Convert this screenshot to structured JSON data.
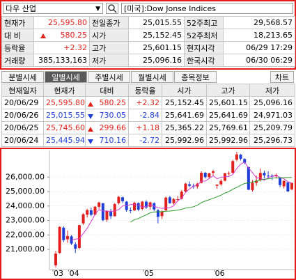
{
  "header": {
    "market": "다우 산업",
    "symbol": "[미국]:Dow Jonse Indices"
  },
  "quote": [
    [
      "현재가",
      "25,595.80",
      "전일종가",
      "25,015.55",
      "52주최고",
      "29,568.57"
    ],
    [
      "대 비",
      "580.25",
      "시가",
      "25,152.45",
      "52주최저",
      "18,213.65"
    ],
    [
      "등락율",
      "+2.32",
      "고가",
      "25,601.15",
      "현지시각",
      "06/29 17:29"
    ],
    [
      "거래량",
      "385,133,163",
      "저가",
      "25,096.16",
      "한국시각",
      "06/30 06:29"
    ]
  ],
  "tabs": [
    "분별시세",
    "일별시세",
    "주별시세",
    "월별시세",
    "종목정보"
  ],
  "chart_button": "차트",
  "daily": {
    "columns": [
      "현재일자",
      "현재가",
      "대비",
      "등락율",
      "시가",
      "고가",
      "저가"
    ],
    "rows": [
      [
        "20/06/29",
        "25,595.80",
        "580.25",
        "+2.32",
        "25,152.45",
        "25,601.15",
        "25,096.16"
      ],
      [
        "20/06/26",
        "25,015.55",
        "730.05",
        "-2.84",
        "25,641.69",
        "25,641.69",
        "24,971.03"
      ],
      [
        "20/06/25",
        "25,745.60",
        "299.66",
        "+1.18",
        "25,365.22",
        "25,769.61",
        "25,209.79"
      ],
      [
        "20/06/24",
        "25,445.94",
        "710.16",
        "-2.72",
        "25,992.96",
        "25,992.96",
        "25,296.73"
      ]
    ]
  },
  "chart": {
    "type": "candlestick",
    "up_color": "#e0211d",
    "down_color": "#1f3fd6",
    "ma5_color": "#d23cd2",
    "ma20_color": "#2a9a2a",
    "ylim": [
      19700,
      27700
    ],
    "yticks": [
      {
        "value": 21000,
        "label": "21,000.00"
      },
      {
        "value": 22000,
        "label": "22,000.00"
      },
      {
        "value": 23000,
        "label": "23,000.00"
      },
      {
        "value": 24000,
        "label": "24,000.00"
      },
      {
        "value": 25000,
        "label": "25,000.00"
      },
      {
        "value": 26000,
        "label": "26,000.00"
      }
    ],
    "categories": [
      "03",
      null,
      null,
      null,
      "04",
      null,
      null,
      null,
      null,
      null,
      null,
      null,
      null,
      null,
      null,
      null,
      null,
      null,
      null,
      null,
      null,
      null,
      null,
      "05",
      null,
      null,
      null,
      null,
      null,
      null,
      null,
      null,
      null,
      null,
      null,
      null,
      null,
      null,
      null,
      null,
      null,
      "06",
      null,
      null,
      null,
      null,
      null,
      null,
      null,
      null,
      null,
      null,
      null,
      null,
      null,
      null,
      null,
      null,
      null,
      null,
      null
    ],
    "open": [
      19900,
      20750,
      22500,
      21700,
      21900,
      21350,
      21100,
      22800,
      23400,
      23700,
      23400,
      23950,
      24200,
      23050,
      23600,
      23300,
      24200,
      24600,
      24300,
      23700,
      23700,
      24200,
      23800,
      24300,
      23950,
      24200,
      23700,
      23300,
      23700,
      24600,
      24200,
      24450,
      24500,
      25000,
      25500,
      25400,
      25350,
      25600,
      26300,
      26000,
      26300,
      25400,
      25500,
      25750,
      26250,
      26300,
      27200,
      27550,
      27250,
      26700,
      25100,
      25600,
      25800,
      26300,
      26100,
      26100,
      26050,
      25992.96,
      25365.22,
      25641.69,
      25152.45
    ],
    "close": [
      20700,
      22550,
      21640,
      21920,
      21400,
      21050,
      22680,
      23430,
      23720,
      23390,
      23950,
      24240,
      23020,
      23650,
      23300,
      24130,
      24630,
      24340,
      23720,
      23660,
      24220,
      23750,
      24300,
      23900,
      24250,
      23760,
      23250,
      23620,
      24580,
      24200,
      24480,
      24470,
      24990,
      25550,
      25400,
      25380,
      25550,
      26300,
      26000,
      26270,
      26400,
      25480,
      25740,
      26270,
      26280,
      27110,
      27570,
      27270,
      26990,
      25130,
      25600,
      25760,
      26290,
      26120,
      26080,
      26024.36,
      26156.1,
      25445.94,
      25745.6,
      25015.55,
      25595.8
    ],
    "high": [
      20900,
      22600,
      22600,
      22300,
      22000,
      21500,
      22700,
      23500,
      23800,
      23900,
      24000,
      24300,
      24200,
      23700,
      23800,
      24200,
      24700,
      24650,
      24350,
      23900,
      24300,
      24250,
      24350,
      24400,
      24300,
      24250,
      23800,
      23700,
      24650,
      24700,
      24550,
      24700,
      25100,
      25600,
      25700,
      25550,
      25600,
      26400,
      26350,
      26300,
      26500,
      25500,
      25850,
      26300,
      26400,
      27200,
      27750,
      27600,
      27300,
      26700,
      25800,
      26100,
      26600,
      26450,
      26400,
      26200,
      26250,
      25992.96,
      25769.61,
      25641.69,
      25601.15
    ],
    "low": [
      19750,
      20700,
      21500,
      21450,
      21300,
      20750,
      21000,
      22700,
      23200,
      23300,
      23350,
      23800,
      22950,
      22900,
      23100,
      23250,
      24100,
      24200,
      23600,
      23500,
      23650,
      23650,
      23700,
      23800,
      23750,
      23650,
      22800,
      23100,
      23650,
      24150,
      24100,
      24300,
      24450,
      24950,
      25300,
      25200,
      25200,
      25550,
      25900,
      25900,
      26100,
      25200,
      25400,
      25700,
      26100,
      26250,
      27100,
      27150,
      26900,
      25100,
      25000,
      25400,
      25700,
      25900,
      25900,
      25800,
      25900,
      25296.73,
      25209.79,
      24971.03,
      25096.16
    ],
    "ma5": [
      null,
      null,
      null,
      null,
      21640,
      21710,
      21740,
      22100,
      22460,
      22930,
      23430,
      23750,
      23660,
      23650,
      23630,
      23660,
      23750,
      24010,
      24020,
      24100,
      24110,
      24070,
      23930,
      23970,
      24080,
      23990,
      23890,
      23830,
      23870,
      23880,
      24020,
      24350,
      24540,
      24940,
      25180,
      25360,
      25450,
      25720,
      25730,
      25900,
      26100,
      25890,
      25980,
      26030,
      26040,
      26180,
      26590,
      26900,
      27040,
      26630,
      26310,
      25950,
      25950,
      25770,
      25970,
      26050,
      26130,
      25970,
      25890,
      25680,
      25590
    ],
    "ma20": [
      null,
      null,
      null,
      null,
      null,
      null,
      null,
      null,
      null,
      null,
      null,
      null,
      null,
      null,
      null,
      null,
      null,
      null,
      null,
      22880,
      23060,
      23130,
      23270,
      23390,
      23530,
      23590,
      23600,
      23610,
      23640,
      23650,
      23680,
      23720,
      23770,
      23860,
      23890,
      23950,
      24050,
      24230,
      24350,
      24430,
      24540,
      24630,
      24750,
      24900,
      25000,
      25160,
      25290,
      25430,
      25560,
      25600,
      25650,
      25720,
      25800,
      25850,
      25880,
      25920,
      25950,
      25950,
      25960,
      25970,
      25980
    ]
  }
}
